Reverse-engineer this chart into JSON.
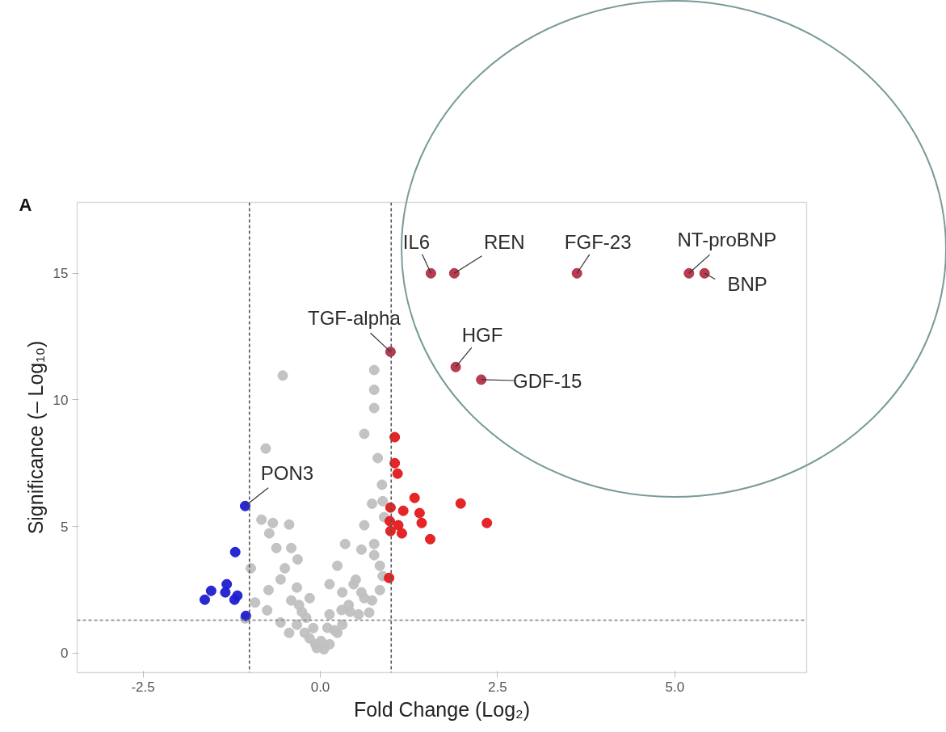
{
  "chart_data": {
    "type": "scatter",
    "title": "A",
    "xlabel": "Fold Change (Log₂)",
    "ylabel": "Significance (– Log₁₀)",
    "xlim": [
      -3.43,
      6.86
    ],
    "ylim": [
      -0.77,
      17.8
    ],
    "xticks": [
      {
        "value": -2.5,
        "label": "-2.5"
      },
      {
        "value": 0,
        "label": "0.0"
      },
      2.5,
      {
        "value": 5,
        "label": "5.0"
      }
    ],
    "yticks": [
      0,
      5,
      10,
      15
    ],
    "grid": false,
    "marker": "circle",
    "series": [
      {
        "color": "#c0c0c0",
        "x": [
          -0.53,
          0.76,
          0.76,
          0.76,
          0.62,
          -0.77,
          0.81,
          0.73,
          -0.83,
          -0.67,
          -0.44,
          -0.72,
          -0.62,
          -0.41,
          -0.32,
          -0.5,
          -0.98,
          -0.56,
          -0.33,
          -0.73,
          -0.75,
          -1.06,
          0.62,
          0.35,
          0.58,
          0.76,
          0.24,
          0.13,
          0.47,
          0.31,
          0.58,
          0.73,
          -0.15,
          -0.41,
          -0.26,
          0.13,
          0.42,
          -0.33,
          -0.1,
          0.31,
          -0.44,
          0.01,
          0.13,
          -0.15,
          -0.22,
          0.24,
          -0.56,
          0.54,
          0.62,
          -0.07,
          0.84,
          0.88,
          0.84,
          0.76,
          0.9,
          0.87,
          0.88,
          0.69,
          -0.92,
          0.05,
          -0.05,
          0.2,
          0.4,
          0.5,
          -0.2,
          -0.3,
          0.3,
          0.1
        ],
        "values": [
          10.96,
          11.18,
          10.4,
          9.68,
          8.66,
          8.08,
          7.7,
          5.9,
          5.27,
          5.14,
          5.08,
          4.73,
          4.15,
          4.15,
          3.7,
          3.35,
          3.35,
          2.91,
          2.59,
          2.49,
          1.69,
          1.37,
          5.05,
          4.31,
          4.09,
          3.87,
          3.45,
          2.72,
          2.72,
          2.4,
          2.4,
          2.08,
          2.17,
          2.08,
          1.63,
          1.53,
          1.63,
          1.12,
          0.99,
          1.12,
          0.8,
          0.48,
          0.35,
          0.58,
          0.8,
          0.8,
          1.21,
          1.53,
          2.17,
          0.35,
          2.49,
          3.04,
          3.45,
          4.31,
          5.37,
          6.65,
          6.0,
          1.6,
          2.0,
          0.15,
          0.2,
          0.9,
          1.9,
          2.9,
          1.4,
          1.9,
          1.7,
          1.0
        ]
      },
      {
        "color": "#1f1fd0",
        "x": [
          -1.63,
          -1.54,
          -1.32,
          -1.34,
          -1.21,
          -1.2,
          -1.06,
          -1.05,
          -1.17
        ],
        "values": [
          2.11,
          2.46,
          2.72,
          2.4,
          2.11,
          3.99,
          5.81,
          1.47,
          2.27
        ]
      },
      {
        "color": "#e41a1c",
        "x": [
          1.05,
          1.05,
          1.09,
          1.33,
          1.98,
          0.99,
          1.17,
          1.4,
          1.43,
          2.35,
          0.98,
          1.1,
          0.99,
          1.15,
          1.55,
          0.97
        ],
        "values": [
          8.53,
          7.5,
          7.09,
          6.13,
          5.91,
          5.75,
          5.62,
          5.53,
          5.14,
          5.14,
          5.21,
          5.05,
          4.82,
          4.73,
          4.5,
          2.97
        ]
      },
      {
        "color": "#b23248",
        "x": [
          1.56,
          1.89,
          3.62,
          5.2,
          5.42,
          0.99,
          1.91,
          2.27
        ],
        "values": [
          15.0,
          15.0,
          15.0,
          15.0,
          15.0,
          11.9,
          11.3,
          10.8
        ]
      }
    ],
    "ref_lines": [
      {
        "axis": "x",
        "value": -1,
        "color": "#555555",
        "line_style": "dashed"
      },
      {
        "axis": "x",
        "value": 1,
        "color": "#555555",
        "line_style": "dashed"
      },
      {
        "axis": "y",
        "value": 1.3,
        "color": "#8c8c8c",
        "line_style": "dashed"
      }
    ],
    "annotations": [
      {
        "text": "IL6",
        "x": 1.56,
        "y": 15.0
      },
      {
        "text": "REN",
        "x": 1.89,
        "y": 15.0
      },
      {
        "text": "FGF-23",
        "x": 3.62,
        "y": 15.0
      },
      {
        "text": "NT-proBNP",
        "x": 5.2,
        "y": 15.0
      },
      {
        "text": "BNP",
        "x": 5.42,
        "y": 15.0
      },
      {
        "text": "TGF-alpha",
        "x": 0.99,
        "y": 11.9
      },
      {
        "text": "HGF",
        "x": 1.91,
        "y": 11.3
      },
      {
        "text": "GDF-15",
        "x": 2.27,
        "y": 10.8
      },
      {
        "text": "PON3",
        "x": -1.06,
        "y": 5.81
      }
    ]
  }
}
